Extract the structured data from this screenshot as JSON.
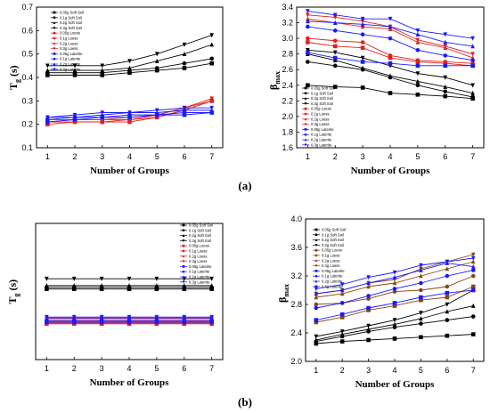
{
  "panel_labels": [
    "(a)",
    "(b)"
  ],
  "chart_data": [
    {
      "panel": "a-left",
      "type": "line",
      "xlabel": "Number of Groups",
      "ylabel": "T_g (s)",
      "ylabel_main": "T",
      "ylabel_sub": "g",
      "ylabel_unit": "(s)",
      "xlim": [
        0.6,
        7.4
      ],
      "ylim": [
        0.1,
        0.7
      ],
      "xticks": [
        1,
        2,
        3,
        4,
        5,
        6,
        7
      ],
      "yticks": [
        0.1,
        0.2,
        0.3,
        0.4,
        0.5,
        0.6,
        0.7
      ],
      "x": [
        1,
        2,
        3,
        4,
        5,
        6,
        7
      ],
      "series": [
        {
          "name": "0.05g Soft Soil",
          "color": "#000000",
          "marker": "square",
          "values": [
            0.41,
            0.41,
            0.41,
            0.42,
            0.43,
            0.44,
            0.46
          ]
        },
        {
          "name": "0.1g Soft Soil",
          "color": "#000000",
          "marker": "circle",
          "values": [
            0.42,
            0.42,
            0.42,
            0.43,
            0.44,
            0.46,
            0.48
          ]
        },
        {
          "name": "0.2g Soft Soil",
          "color": "#000000",
          "marker": "triangle-up",
          "values": [
            0.43,
            0.43,
            0.43,
            0.44,
            0.47,
            0.5,
            0.54
          ]
        },
        {
          "name": "0.3g Soft Soil",
          "color": "#000000",
          "marker": "triangle-down",
          "values": [
            0.45,
            0.45,
            0.45,
            0.47,
            0.5,
            0.54,
            0.58
          ]
        },
        {
          "name": "0.05g Loess",
          "color": "#e02020",
          "marker": "square",
          "values": [
            0.2,
            0.21,
            0.21,
            0.21,
            0.23,
            0.26,
            0.3
          ]
        },
        {
          "name": "0.1g Loess",
          "color": "#e02020",
          "marker": "circle",
          "values": [
            0.21,
            0.21,
            0.21,
            0.22,
            0.23,
            0.26,
            0.3
          ]
        },
        {
          "name": "0.2g Loess",
          "color": "#e02020",
          "marker": "triangle-up",
          "values": [
            0.21,
            0.22,
            0.22,
            0.22,
            0.24,
            0.27,
            0.3
          ]
        },
        {
          "name": "0.3g Loess",
          "color": "#e02020",
          "marker": "triangle-down",
          "values": [
            0.22,
            0.22,
            0.22,
            0.23,
            0.24,
            0.27,
            0.31
          ]
        },
        {
          "name": "0.05g Laterite",
          "color": "#1a1aff",
          "marker": "square",
          "values": [
            0.21,
            0.22,
            0.23,
            0.23,
            0.24,
            0.24,
            0.25
          ]
        },
        {
          "name": "0.1g Laterite",
          "color": "#1a1aff",
          "marker": "circle",
          "values": [
            0.22,
            0.23,
            0.23,
            0.24,
            0.24,
            0.25,
            0.25
          ]
        },
        {
          "name": "0.2g Laterite",
          "color": "#1a1aff",
          "marker": "triangle-up",
          "values": [
            0.23,
            0.23,
            0.24,
            0.25,
            0.25,
            0.26,
            0.26
          ]
        },
        {
          "name": "0.3g Laterite",
          "color": "#1a1aff",
          "marker": "triangle-down",
          "values": [
            0.23,
            0.24,
            0.25,
            0.25,
            0.26,
            0.27,
            0.27
          ]
        }
      ]
    },
    {
      "panel": "a-right",
      "type": "line",
      "xlabel": "Number of Groups",
      "ylabel": "β_max",
      "ylabel_main": "β",
      "ylabel_sub": "max",
      "xlim": [
        0.6,
        7.4
      ],
      "ylim": [
        1.6,
        3.4
      ],
      "xticks": [
        1,
        2,
        3,
        4,
        5,
        6,
        7
      ],
      "yticks": [
        1.6,
        1.8,
        2.0,
        2.2,
        2.4,
        2.6,
        2.8,
        3.0,
        3.2,
        3.4
      ],
      "x": [
        1,
        2,
        3,
        4,
        5,
        6,
        7
      ],
      "series": [
        {
          "name": "0.05g Soft Soil",
          "color": "#000000",
          "marker": "square",
          "values": [
            2.4,
            2.38,
            2.37,
            2.3,
            2.28,
            2.26,
            2.23
          ]
        },
        {
          "name": "0.1g Soft Soil",
          "color": "#000000",
          "marker": "circle",
          "values": [
            2.7,
            2.65,
            2.6,
            2.5,
            2.4,
            2.32,
            2.25
          ]
        },
        {
          "name": "0.2g Soft Soil",
          "color": "#000000",
          "marker": "triangle-up",
          "values": [
            2.8,
            2.72,
            2.62,
            2.52,
            2.45,
            2.38,
            2.3
          ]
        },
        {
          "name": "0.3g Soft Soil",
          "color": "#000000",
          "marker": "triangle-down",
          "values": [
            2.85,
            2.82,
            2.75,
            2.65,
            2.55,
            2.5,
            2.4
          ]
        },
        {
          "name": "0.05g Loess",
          "color": "#e02020",
          "marker": "square",
          "values": [
            2.95,
            2.9,
            2.88,
            2.75,
            2.7,
            2.68,
            2.65
          ]
        },
        {
          "name": "0.1g Loess",
          "color": "#e02020",
          "marker": "circle",
          "values": [
            3.0,
            2.97,
            2.95,
            2.78,
            2.72,
            2.7,
            2.68
          ]
        },
        {
          "name": "0.2g Loess",
          "color": "#e02020",
          "marker": "triangle-up",
          "values": [
            3.25,
            3.2,
            3.15,
            3.12,
            2.95,
            2.88,
            2.75
          ]
        },
        {
          "name": "0.3g Loess",
          "color": "#e02020",
          "marker": "triangle-down",
          "values": [
            3.3,
            3.27,
            3.22,
            3.15,
            2.98,
            2.9,
            2.8
          ]
        },
        {
          "name": "0.05g Laterite",
          "color": "#1a1aff",
          "marker": "square",
          "values": [
            2.82,
            2.75,
            2.7,
            2.68,
            2.65,
            2.65,
            2.65
          ]
        },
        {
          "name": "0.1g Laterite",
          "color": "#1a1aff",
          "marker": "circle",
          "values": [
            3.15,
            3.1,
            3.05,
            3.0,
            2.85,
            2.78,
            2.72
          ]
        },
        {
          "name": "0.2g Laterite",
          "color": "#1a1aff",
          "marker": "triangle-up",
          "values": [
            3.22,
            3.2,
            3.18,
            3.15,
            3.05,
            2.95,
            2.9
          ]
        },
        {
          "name": "0.3g Laterite",
          "color": "#1a1aff",
          "marker": "triangle-down",
          "values": [
            3.35,
            3.3,
            3.25,
            3.25,
            3.1,
            3.05,
            3.0
          ]
        }
      ]
    },
    {
      "panel": "b-left",
      "type": "line",
      "xlabel": "Number of Groups",
      "ylabel": "T_g (s)",
      "ylabel_main": "T",
      "ylabel_sub": "g",
      "ylabel_unit": "(s)",
      "xlim": [
        0.6,
        7.4
      ],
      "ylim": [
        0.0,
        0.8
      ],
      "xticks": [
        1,
        2,
        3,
        4,
        5,
        6,
        7
      ],
      "yticks": [],
      "x": [
        1,
        2,
        3,
        4,
        5,
        6,
        7
      ],
      "series": [
        {
          "name": "0.05g Soft Soil",
          "color": "#000000",
          "marker": "square",
          "values": [
            0.415,
            0.415,
            0.415,
            0.415,
            0.415,
            0.415,
            0.415
          ]
        },
        {
          "name": "0.1g Soft Soil",
          "color": "#000000",
          "marker": "circle",
          "values": [
            0.425,
            0.425,
            0.425,
            0.425,
            0.425,
            0.425,
            0.425
          ]
        },
        {
          "name": "0.2g Soft Soil",
          "color": "#000000",
          "marker": "triangle-up",
          "values": [
            0.435,
            0.435,
            0.435,
            0.435,
            0.435,
            0.435,
            0.435
          ]
        },
        {
          "name": "0.3g Soft Soil",
          "color": "#000000",
          "marker": "triangle-down",
          "values": [
            0.475,
            0.475,
            0.475,
            0.475,
            0.475,
            0.475,
            0.475
          ]
        },
        {
          "name": "0.05g Loess",
          "color": "#e02020",
          "marker": "square",
          "values": [
            0.21,
            0.21,
            0.21,
            0.21,
            0.21,
            0.21,
            0.21
          ]
        },
        {
          "name": "0.1g Loess",
          "color": "#e02020",
          "marker": "circle",
          "values": [
            0.215,
            0.215,
            0.215,
            0.215,
            0.215,
            0.215,
            0.215
          ]
        },
        {
          "name": "0.2g Loess",
          "color": "#e02020",
          "marker": "triangle-up",
          "values": [
            0.225,
            0.225,
            0.225,
            0.225,
            0.225,
            0.225,
            0.225
          ]
        },
        {
          "name": "0.3g Loess",
          "color": "#e02020",
          "marker": "triangle-down",
          "values": [
            0.24,
            0.24,
            0.24,
            0.24,
            0.24,
            0.24,
            0.24
          ]
        },
        {
          "name": "0.05g Laterite",
          "color": "#1a1aff",
          "marker": "square",
          "values": [
            0.22,
            0.22,
            0.22,
            0.22,
            0.22,
            0.22,
            0.22
          ]
        },
        {
          "name": "0.1g Laterite",
          "color": "#1a1aff",
          "marker": "circle",
          "values": [
            0.23,
            0.23,
            0.23,
            0.23,
            0.23,
            0.23,
            0.23
          ]
        },
        {
          "name": "0.2g Laterite",
          "color": "#1a1aff",
          "marker": "triangle-up",
          "values": [
            0.245,
            0.245,
            0.245,
            0.245,
            0.245,
            0.245,
            0.245
          ]
        },
        {
          "name": "0.3g Laterite",
          "color": "#1a1aff",
          "marker": "triangle-down",
          "values": [
            0.25,
            0.25,
            0.25,
            0.25,
            0.25,
            0.25,
            0.25
          ]
        }
      ]
    },
    {
      "panel": "b-right",
      "type": "line",
      "xlabel": "Number of Groups",
      "ylabel": "β_max",
      "ylabel_main": "β",
      "ylabel_sub": "max",
      "xlim": [
        0.6,
        7.4
      ],
      "ylim": [
        2.0,
        4.0
      ],
      "xticks": [
        1,
        2,
        3,
        4,
        5,
        6,
        7
      ],
      "yticks": [
        2.0,
        2.4,
        2.8,
        3.2,
        3.6,
        4.0
      ],
      "x": [
        1,
        2,
        3,
        4,
        5,
        6,
        7
      ],
      "series": [
        {
          "name": "0.05g Soft Soil",
          "color": "#000000",
          "marker": "square",
          "values": [
            2.25,
            2.28,
            2.3,
            2.32,
            2.34,
            2.36,
            2.38
          ]
        },
        {
          "name": "0.1g Soft Soil",
          "color": "#000000",
          "marker": "circle",
          "values": [
            2.28,
            2.35,
            2.42,
            2.48,
            2.53,
            2.58,
            2.63
          ]
        },
        {
          "name": "0.2g Soft Soil",
          "color": "#000000",
          "marker": "triangle-up",
          "values": [
            2.3,
            2.38,
            2.45,
            2.52,
            2.6,
            2.7,
            2.78
          ]
        },
        {
          "name": "0.3g Soft Soil",
          "color": "#000000",
          "marker": "triangle-down",
          "values": [
            2.35,
            2.42,
            2.5,
            2.58,
            2.68,
            2.8,
            3.0
          ]
        },
        {
          "name": "0.05g Loess",
          "color": "#8b4513",
          "marker": "square",
          "values": [
            2.55,
            2.62,
            2.72,
            2.78,
            2.86,
            2.9,
            3.05
          ]
        },
        {
          "name": "0.1g Loess",
          "color": "#8b4513",
          "marker": "circle",
          "values": [
            2.8,
            2.82,
            2.88,
            2.98,
            3.0,
            3.05,
            3.2
          ]
        },
        {
          "name": "0.2g Loess",
          "color": "#8b4513",
          "marker": "triangle-up",
          "values": [
            2.9,
            2.95,
            3.05,
            3.1,
            3.2,
            3.3,
            3.4
          ]
        },
        {
          "name": "0.3g Loess",
          "color": "#8b4513",
          "marker": "triangle-down",
          "values": [
            2.95,
            3.0,
            3.1,
            3.15,
            3.3,
            3.4,
            3.5
          ]
        },
        {
          "name": "0.05g Laterite",
          "color": "#1a1aff",
          "marker": "square",
          "values": [
            2.58,
            2.66,
            2.75,
            2.82,
            2.9,
            2.96,
            3.0
          ]
        },
        {
          "name": "0.1g Laterite",
          "color": "#1a1aff",
          "marker": "circle",
          "values": [
            2.75,
            2.82,
            2.92,
            3.02,
            3.1,
            3.2,
            3.28
          ]
        },
        {
          "name": "0.2g Laterite",
          "color": "#1a1aff",
          "marker": "triangle-up",
          "values": [
            2.95,
            3.0,
            3.1,
            3.18,
            3.28,
            3.38,
            3.33
          ]
        },
        {
          "name": "0.3g Laterite",
          "color": "#1a1aff",
          "marker": "triangle-down",
          "values": [
            3.02,
            3.08,
            3.18,
            3.25,
            3.35,
            3.4,
            3.45
          ]
        }
      ]
    }
  ]
}
